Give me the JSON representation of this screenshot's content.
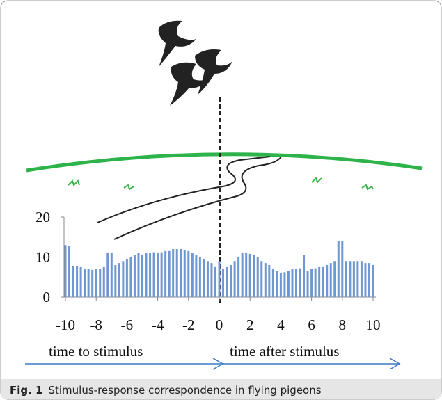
{
  "chart_data": {
    "type": "bar",
    "x": [
      -10,
      -9.75,
      -9.5,
      -9.25,
      -9,
      -8.75,
      -8.5,
      -8.25,
      -8,
      -7.75,
      -7.5,
      -7.25,
      -7,
      -6.75,
      -6.5,
      -6.25,
      -6,
      -5.75,
      -5.5,
      -5.25,
      -5,
      -4.75,
      -4.5,
      -4.25,
      -4,
      -3.75,
      -3.5,
      -3.25,
      -3,
      -2.75,
      -2.5,
      -2.25,
      -2,
      -1.75,
      -1.5,
      -1.25,
      -1,
      -0.75,
      -0.5,
      -0.25,
      0,
      0.25,
      0.5,
      0.75,
      1,
      1.25,
      1.5,
      1.75,
      2,
      2.25,
      2.5,
      2.75,
      3,
      3.25,
      3.5,
      3.75,
      4,
      4.25,
      4.5,
      4.75,
      5,
      5.25,
      5.5,
      5.75,
      6,
      6.25,
      6.5,
      6.75,
      7,
      7.25,
      7.5,
      7.75,
      8,
      8.25,
      8.5,
      8.75,
      9,
      9.25,
      9.5,
      9.75,
      10
    ],
    "values": [
      13,
      12.8,
      7.8,
      7.8,
      7.5,
      7,
      7,
      6.8,
      7,
      7,
      7.5,
      11,
      11,
      8,
      8.5,
      9,
      9.5,
      10,
      10.5,
      11,
      10.5,
      11,
      11,
      11.2,
      11,
      11.2,
      11.5,
      11.5,
      12,
      12,
      12,
      11.8,
      11.5,
      11,
      10.5,
      10,
      9.5,
      9,
      8.5,
      7.5,
      9,
      7,
      7.5,
      8,
      9,
      10,
      11,
      11,
      10.8,
      10.5,
      10,
      9,
      8.5,
      8,
      7,
      6.5,
      6,
      6.2,
      6.5,
      7,
      7,
      7.2,
      10.5,
      6.5,
      7,
      7.2,
      7.5,
      7.5,
      8,
      8.5,
      9,
      14,
      14,
      9,
      9,
      9,
      9,
      9,
      8.5,
      8.5,
      8
    ],
    "color": "#6f98d2",
    "xlim": [
      -10,
      10
    ],
    "xticks": [
      -10,
      -8,
      -6,
      -4,
      -2,
      0,
      2,
      4,
      6,
      8,
      10
    ],
    "ylim": [
      0,
      20
    ],
    "yticks": [
      0,
      10,
      20
    ],
    "annotations": [
      "time to stimulus",
      "time after stimulus"
    ]
  },
  "caption": {
    "label": "Fig. 1",
    "text": "Stimulus-response correspondence in flying pigeons"
  }
}
